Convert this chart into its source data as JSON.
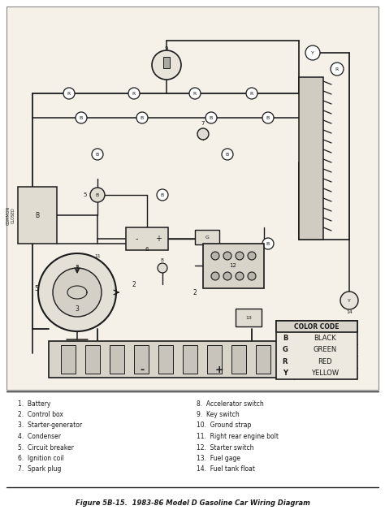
{
  "figure_caption": "Figure 5B-15.  1983-86 Model D Gasoline Car Wiring Diagram",
  "color_code_title": "COLOR CODE",
  "color_codes": [
    {
      "letter": "B",
      "name": "BLACK"
    },
    {
      "letter": "G",
      "name": "GREEN"
    },
    {
      "letter": "R",
      "name": "RED"
    },
    {
      "letter": "Y",
      "name": "YELLOW"
    }
  ],
  "legend_items_left": [
    "1.  Battery",
    "2.  Control box",
    "3.  Starter-generator",
    "4.  Condenser",
    "5.  Circuit breaker",
    "6.  Ignition coil",
    "7.  Spark plug"
  ],
  "legend_items_right": [
    "8.  Accelerator switch",
    "9.  Key switch",
    "10.  Ground strap",
    "11.  Right rear engine bolt",
    "12.  Starter switch",
    "13.  Fuel gage",
    "14.  Fuel tank float"
  ],
  "bg_color": "#ffffff",
  "line_color": "#1a1a1a",
  "text_color": "#1a1a1a",
  "diagram_bg": "#f0ece4"
}
